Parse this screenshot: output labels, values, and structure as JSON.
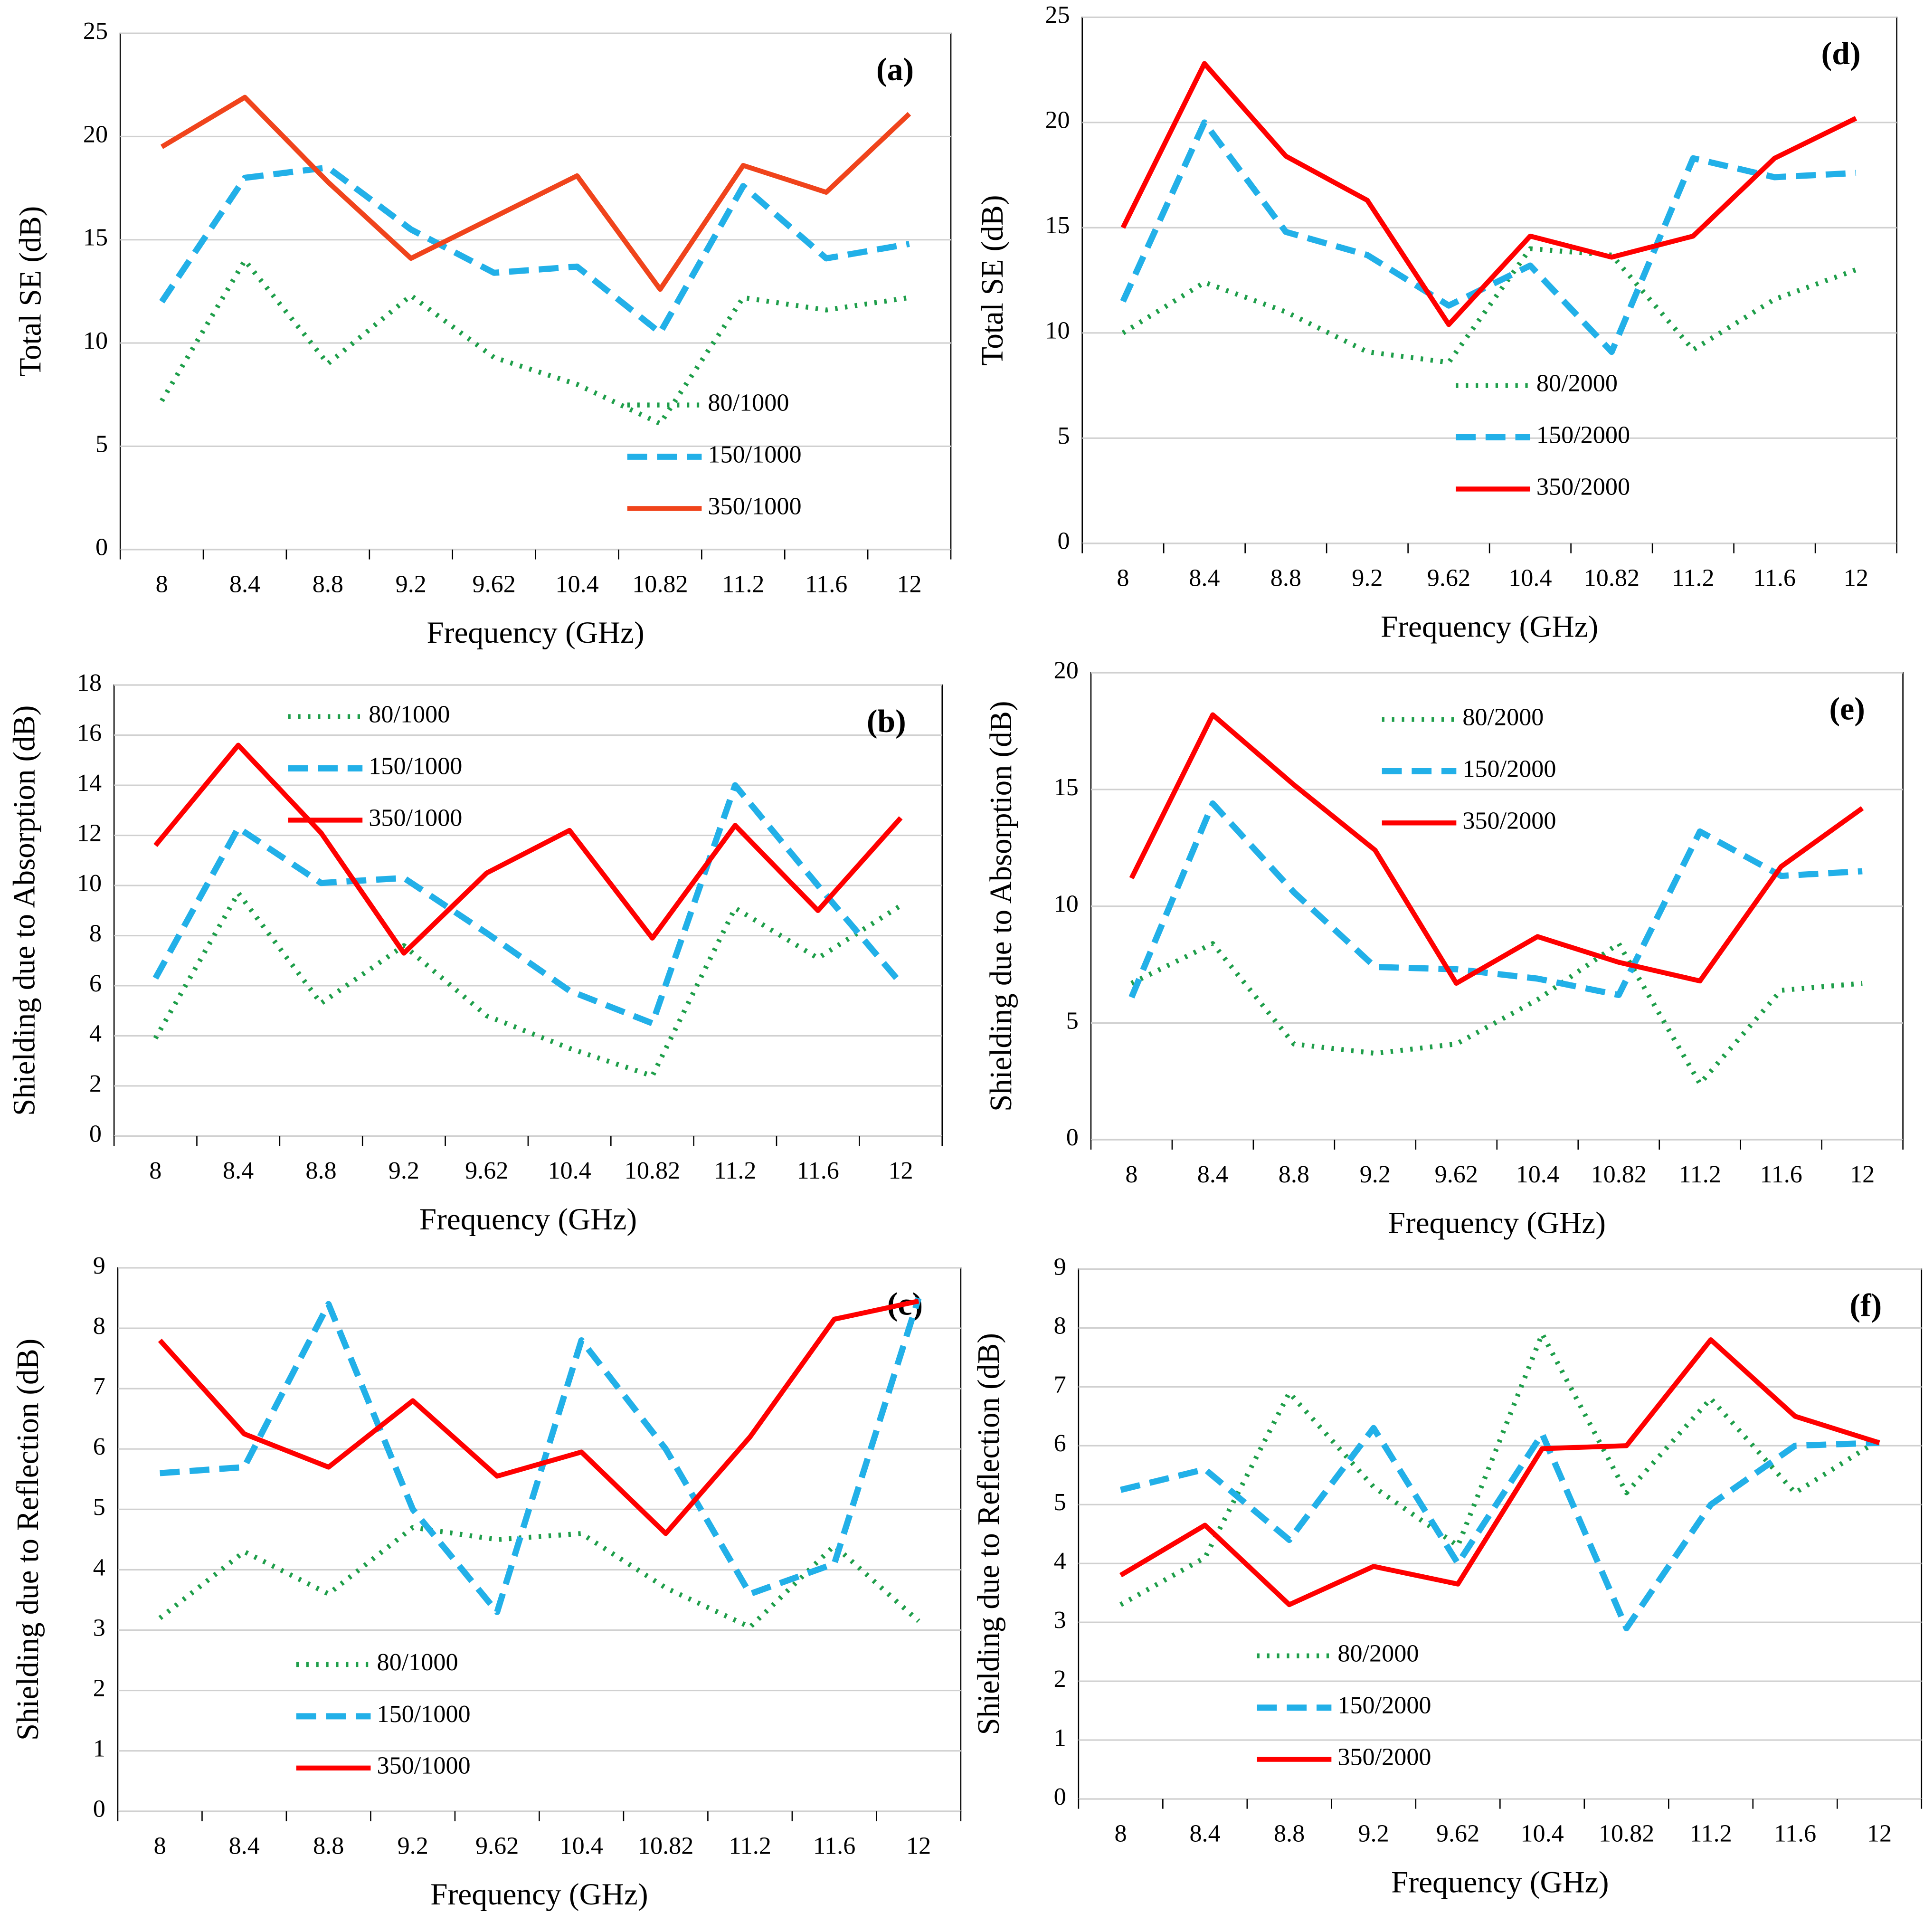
{
  "chart_data": [
    {
      "type": "line",
      "annotation": "(a)",
      "xlabel": "Frequency (GHz)",
      "ylabel": "Total SE (dB)",
      "categories": [
        "8",
        "8.4",
        "8.8",
        "9.2",
        "9.62",
        "10.4",
        "10.82",
        "11.2",
        "11.6",
        "12"
      ],
      "ylim": [
        0,
        25
      ],
      "yticks": [
        0,
        5,
        10,
        15,
        20,
        25
      ],
      "grid": true,
      "legend": "lower right",
      "series": [
        {
          "name": "80/1000",
          "color": "#1e9e4a",
          "style": "dotted",
          "values": [
            7.2,
            14,
            9,
            12.3,
            9.3,
            8,
            6.1,
            12.2,
            11.6,
            12.2
          ]
        },
        {
          "name": "150/1000",
          "color": "#22b0e8",
          "style": "dashed",
          "values": [
            12,
            18,
            18.5,
            15.5,
            13.4,
            13.7,
            10.5,
            17.6,
            14.1,
            14.8
          ]
        },
        {
          "name": "350/1000",
          "color": "#f0441c",
          "style": "solid",
          "values": [
            19.5,
            21.9,
            17.8,
            14.1,
            16.1,
            18.1,
            12.6,
            18.6,
            17.3,
            21.1
          ]
        }
      ]
    },
    {
      "type": "line",
      "annotation": "(d)",
      "xlabel": "Frequency (GHz)",
      "ylabel": "Total SE (dB)",
      "categories": [
        "8",
        "8.4",
        "8.8",
        "9.2",
        "9.62",
        "10.4",
        "10.82",
        "11.2",
        "11.6",
        "12"
      ],
      "ylim": [
        0,
        25
      ],
      "yticks": [
        0,
        5,
        10,
        15,
        20,
        25
      ],
      "grid": true,
      "legend": "lower center",
      "series": [
        {
          "name": "80/2000",
          "color": "#1e9e4a",
          "style": "dotted",
          "values": [
            10,
            12.4,
            11,
            9.1,
            8.6,
            14,
            13.7,
            9.2,
            11.6,
            13
          ]
        },
        {
          "name": "150/2000",
          "color": "#22b0e8",
          "style": "dashed",
          "values": [
            11.5,
            20,
            14.8,
            13.7,
            11.3,
            13.2,
            9.1,
            18.3,
            17.4,
            17.6
          ]
        },
        {
          "name": "350/2000",
          "color": "#ff0000",
          "style": "solid",
          "values": [
            15,
            22.8,
            18.4,
            16.3,
            10.4,
            14.6,
            13.6,
            14.6,
            18.3,
            20.2
          ]
        }
      ]
    },
    {
      "type": "line",
      "annotation": "(b)",
      "xlabel": "Frequency (GHz)",
      "ylabel": "Shielding due to Absorption (dB)",
      "categories": [
        "8",
        "8.4",
        "8.8",
        "9.2",
        "9.62",
        "10.4",
        "10.82",
        "11.2",
        "11.6",
        "12"
      ],
      "ylim": [
        0,
        18
      ],
      "yticks": [
        0,
        2,
        4,
        6,
        8,
        10,
        12,
        14,
        16,
        18
      ],
      "grid": true,
      "legend": "upper left",
      "series": [
        {
          "name": "80/1000",
          "color": "#1e9e4a",
          "style": "dotted",
          "values": [
            3.9,
            9.7,
            5.3,
            7.6,
            4.8,
            3.5,
            2.4,
            9.1,
            7.1,
            9.2
          ]
        },
        {
          "name": "150/1000",
          "color": "#22b0e8",
          "style": "dashed",
          "values": [
            6.3,
            12.3,
            10.1,
            10.3,
            8.1,
            5.8,
            4.5,
            14,
            10,
            6.1
          ]
        },
        {
          "name": "350/1000",
          "color": "#ff0000",
          "style": "solid",
          "values": [
            11.6,
            15.6,
            12.1,
            7.3,
            10.5,
            12.2,
            7.9,
            12.4,
            9,
            12.7
          ]
        }
      ]
    },
    {
      "type": "line",
      "annotation": "(e)",
      "xlabel": "Frequency (GHz)",
      "ylabel": "Shielding due to Absorption (dB)",
      "categories": [
        "8",
        "8.4",
        "8.8",
        "9.2",
        "9.62",
        "10.4",
        "10.82",
        "11.2",
        "11.6",
        "12"
      ],
      "ylim": [
        0,
        20
      ],
      "yticks": [
        0,
        5,
        10,
        15,
        20
      ],
      "grid": true,
      "legend": "upper center",
      "series": [
        {
          "name": "80/2000",
          "color": "#1e9e4a",
          "style": "dotted",
          "values": [
            6.7,
            8.4,
            4.1,
            3.7,
            4.1,
            6,
            8.4,
            2.4,
            6.4,
            6.7
          ]
        },
        {
          "name": "150/2000",
          "color": "#22b0e8",
          "style": "dashed",
          "values": [
            6.1,
            14.4,
            10.6,
            7.4,
            7.3,
            6.9,
            6.2,
            13.2,
            11.3,
            11.5
          ]
        },
        {
          "name": "350/2000",
          "color": "#ff0000",
          "style": "solid",
          "values": [
            11.2,
            18.2,
            15.2,
            12.4,
            6.7,
            8.7,
            7.6,
            6.8,
            11.7,
            14.2
          ]
        }
      ]
    },
    {
      "type": "line",
      "annotation": "(c)",
      "xlabel": "Frequency (GHz)",
      "ylabel": "Shielding due to Reflection (dB)",
      "categories": [
        "8",
        "8.4",
        "8.8",
        "9.2",
        "9.62",
        "10.4",
        "10.82",
        "11.2",
        "11.6",
        "12"
      ],
      "ylim": [
        0,
        9
      ],
      "yticks": [
        0,
        1,
        2,
        3,
        4,
        5,
        6,
        7,
        8,
        9
      ],
      "grid": true,
      "legend": "lower left",
      "series": [
        {
          "name": "80/1000",
          "color": "#1e9e4a",
          "style": "dotted",
          "values": [
            3.2,
            4.3,
            3.6,
            4.7,
            4.5,
            4.6,
            3.7,
            3.05,
            4.4,
            3.15
          ]
        },
        {
          "name": "150/1000",
          "color": "#22b0e8",
          "style": "dashed",
          "values": [
            5.6,
            5.7,
            8.4,
            5,
            3.3,
            7.8,
            6,
            3.6,
            4.1,
            8.5
          ]
        },
        {
          "name": "350/1000",
          "color": "#ff0000",
          "style": "solid",
          "values": [
            7.8,
            6.25,
            5.7,
            6.8,
            5.55,
            5.95,
            4.6,
            6.2,
            8.15,
            8.45
          ]
        }
      ]
    },
    {
      "type": "line",
      "annotation": "(f)",
      "xlabel": "Frequency (GHz)",
      "ylabel": "Shielding due to Reflection (dB)",
      "categories": [
        "8",
        "8.4",
        "8.8",
        "9.2",
        "9.62",
        "10.4",
        "10.82",
        "11.2",
        "11.6",
        "12"
      ],
      "ylim": [
        0,
        9
      ],
      "yticks": [
        0,
        1,
        2,
        3,
        4,
        5,
        6,
        7,
        8,
        9
      ],
      "grid": true,
      "legend": "lower left",
      "series": [
        {
          "name": "80/2000",
          "color": "#1e9e4a",
          "style": "dotted",
          "values": [
            3.3,
            4.1,
            6.9,
            5.3,
            4.3,
            7.9,
            5.2,
            6.8,
            5.2,
            6.1
          ]
        },
        {
          "name": "150/2000",
          "color": "#22b0e8",
          "style": "dashed",
          "values": [
            5.25,
            5.6,
            4.4,
            6.3,
            4,
            6.2,
            2.9,
            5,
            6,
            6.05
          ]
        },
        {
          "name": "350/2000",
          "color": "#ff0000",
          "style": "solid",
          "values": [
            3.8,
            4.65,
            3.3,
            3.95,
            3.65,
            5.95,
            6,
            7.8,
            6.5,
            6.05
          ]
        }
      ]
    }
  ]
}
